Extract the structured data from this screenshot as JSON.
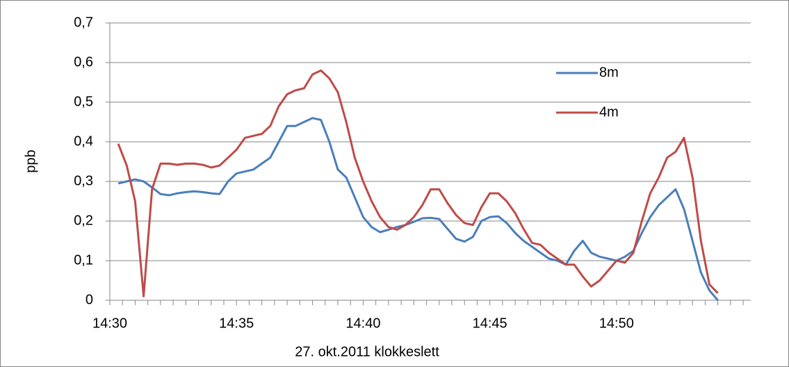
{
  "chart_data": {
    "type": "line",
    "y_label": "ppb",
    "x_label": "27. okt.2011 klokkeslett",
    "categories": [
      "14:30",
      null,
      null,
      null,
      null,
      null,
      null,
      null,
      null,
      null,
      null,
      null,
      null,
      null,
      null,
      "14:35",
      null,
      null,
      null,
      null,
      null,
      null,
      null,
      null,
      null,
      null,
      null,
      null,
      null,
      null,
      "14:40",
      null,
      null,
      null,
      null,
      null,
      null,
      null,
      null,
      null,
      null,
      null,
      null,
      null,
      null,
      "14:45",
      null,
      null,
      null,
      null,
      null,
      null,
      null,
      null,
      null,
      null,
      null,
      null,
      null,
      null,
      "14:50",
      null,
      null,
      null,
      null,
      null,
      null,
      null,
      null,
      null,
      null,
      null,
      null,
      null,
      null,
      null
    ],
    "series": [
      {
        "name": "8m",
        "color": "#4a7ebb",
        "values": [
          null,
          0.295,
          0.3,
          0.305,
          0.3,
          0.285,
          0.268,
          0.265,
          0.27,
          0.273,
          0.275,
          0.273,
          0.27,
          0.268,
          0.3,
          0.32,
          0.325,
          0.33,
          0.345,
          0.36,
          0.4,
          0.44,
          0.44,
          0.45,
          0.46,
          0.455,
          0.4,
          0.33,
          0.31,
          0.26,
          0.21,
          0.185,
          0.172,
          0.178,
          0.185,
          0.19,
          0.198,
          0.207,
          0.208,
          0.205,
          0.18,
          0.155,
          0.148,
          0.16,
          0.2,
          0.21,
          0.212,
          0.195,
          0.17,
          0.15,
          0.135,
          0.12,
          0.105,
          0.1,
          0.09,
          0.125,
          0.15,
          0.12,
          0.11,
          0.105,
          0.1,
          0.11,
          0.125,
          0.17,
          0.21,
          0.24,
          0.26,
          0.28,
          0.23,
          0.15,
          0.07,
          0.025,
          0.0,
          null,
          null,
          null
        ]
      },
      {
        "name": "4m",
        "color": "#be4b48",
        "values": [
          null,
          0.395,
          0.34,
          0.25,
          0.01,
          0.28,
          0.345,
          0.345,
          0.342,
          0.345,
          0.345,
          0.342,
          0.335,
          0.34,
          0.36,
          0.38,
          0.41,
          0.415,
          0.42,
          0.44,
          0.49,
          0.52,
          0.53,
          0.535,
          0.57,
          0.58,
          0.56,
          0.525,
          0.45,
          0.36,
          0.3,
          0.25,
          0.21,
          0.185,
          0.178,
          0.19,
          0.21,
          0.24,
          0.28,
          0.28,
          0.245,
          0.215,
          0.195,
          0.19,
          0.235,
          0.27,
          0.27,
          0.25,
          0.22,
          0.18,
          0.145,
          0.14,
          0.12,
          0.105,
          0.09,
          0.09,
          0.06,
          0.035,
          0.05,
          0.075,
          0.1,
          0.095,
          0.12,
          0.2,
          0.27,
          0.31,
          0.36,
          0.375,
          0.41,
          0.31,
          0.15,
          0.04,
          0.018,
          null,
          null,
          null
        ]
      }
    ],
    "ylim": [
      0,
      0.7
    ],
    "yticks": [
      0,
      {
        "value": 0.1,
        "label": "0,1"
      },
      {
        "value": 0.2,
        "label": "0,2"
      },
      {
        "value": 0.3,
        "label": "0,3"
      },
      {
        "value": 0.4,
        "label": "0,4"
      },
      {
        "value": 0.5,
        "label": "0,5"
      },
      {
        "value": 0.6,
        "label": "0,6"
      },
      {
        "value": 0.7,
        "label": "0,7"
      }
    ],
    "grid": true,
    "legend": "upper right"
  }
}
